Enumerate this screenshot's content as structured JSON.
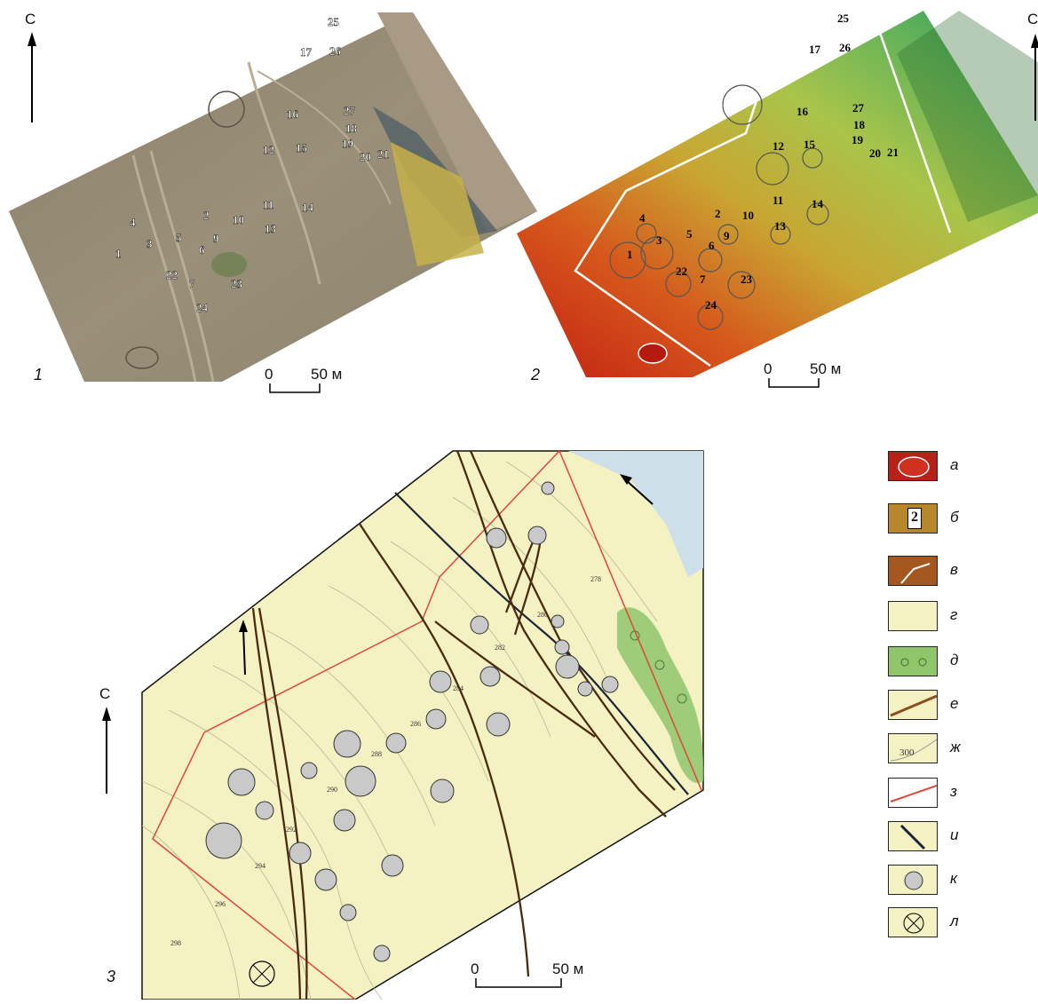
{
  "north_label": "С",
  "panel_numbers": [
    "1",
    "2",
    "3"
  ],
  "scale": {
    "zero": "0",
    "end": "50 м"
  },
  "mound_labels": [
    "1",
    "2",
    "3",
    "4",
    "5",
    "6",
    "7",
    "9",
    "10",
    "11",
    "12",
    "13",
    "14",
    "15",
    "16",
    "17",
    "18",
    "19",
    "20",
    "21",
    "22",
    "23",
    "24",
    "25",
    "26",
    "27"
  ],
  "contour_labels": [
    "278",
    "280",
    "282",
    "284",
    "286",
    "288",
    "290",
    "292",
    "294",
    "296",
    "298"
  ],
  "legend": [
    {
      "letter": "а",
      "icon": "dem-mound-icon"
    },
    {
      "letter": "б",
      "icon": "numbered-marker-icon",
      "sample": "2"
    },
    {
      "letter": "в",
      "icon": "boundary-line-icon"
    },
    {
      "letter": "г",
      "icon": "steppe-fill-icon"
    },
    {
      "letter": "д",
      "icon": "vegetation-fill-icon"
    },
    {
      "letter": "е",
      "icon": "dirt-road-icon"
    },
    {
      "letter": "ж",
      "icon": "contour-line-icon",
      "sample": "300"
    },
    {
      "letter": "з",
      "icon": "survey-boundary-icon"
    },
    {
      "letter": "и",
      "icon": "ridge-line-icon"
    },
    {
      "letter": "к",
      "icon": "burial-mound-icon"
    },
    {
      "letter": "л",
      "icon": "marker-circle-icon"
    }
  ],
  "colors": {
    "steppe": "#f4f2c2",
    "road": "#4a2a10",
    "survey_boundary": "#e0463c",
    "water": "#cde0ea",
    "vegetation": "#8fc56b",
    "mound": "#c9c9c9"
  }
}
